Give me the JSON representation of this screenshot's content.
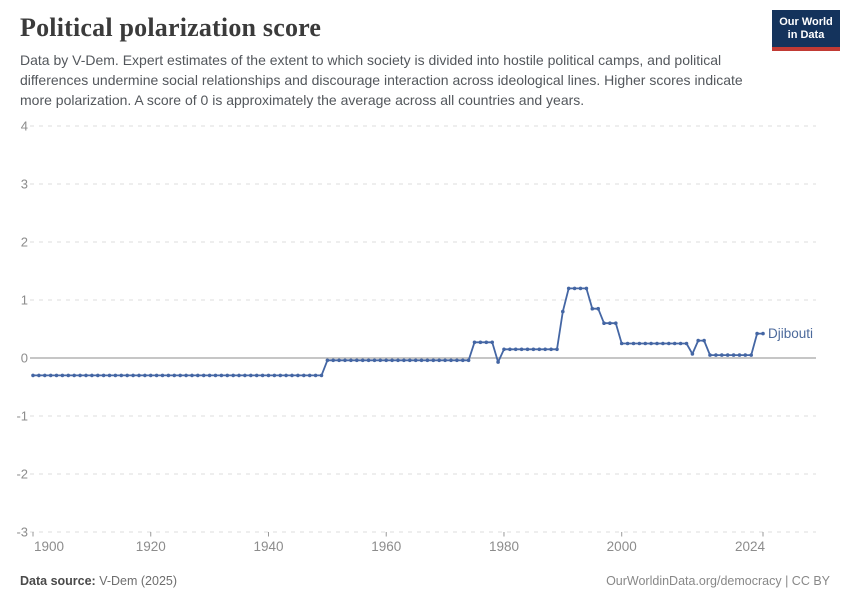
{
  "header": {
    "title": "Political polarization score",
    "subtitle": "Data by V-Dem. Expert estimates of the extent to which society is divided into hostile political camps, and political differences undermine social relationships and discourage interaction across ideological lines. Higher scores indicate more polarization. A score of 0 is approximately the average across all countries and years.",
    "logo": {
      "line1": "Our World",
      "line2": "in Data"
    }
  },
  "colors": {
    "series": "#4c6a9c",
    "series_line": "#4466a4",
    "grid": "#dcdcdc",
    "zero_line": "#a5a5a5",
    "axis_text": "#8c8c8c",
    "logo_bg": "#14335c",
    "logo_red": "#c13a34"
  },
  "chart_data": {
    "type": "line",
    "title": "Political polarization score",
    "xlabel": "",
    "ylabel": "",
    "xlim": [
      1900,
      2024
    ],
    "ylim": [
      -3,
      4
    ],
    "x_ticks": [
      1900,
      1920,
      1940,
      1960,
      1980,
      2000,
      2024
    ],
    "y_ticks": [
      4,
      3,
      2,
      1,
      0,
      -1,
      -2,
      -3
    ],
    "grid": "horizontal-dashed, solid line at 0",
    "legend": "entity label at end of line",
    "series": [
      {
        "name": "Djibouti",
        "color": "#4c6a9c",
        "yearly_points_note": "one data point per year, 1900-2024; encoded as constant-value runs",
        "segments": [
          {
            "from": 1900,
            "to": 1949,
            "value": -0.3
          },
          {
            "from": 1950,
            "to": 1974,
            "value": -0.04
          },
          {
            "from": 1975,
            "to": 1978,
            "value": 0.27
          },
          {
            "from": 1979,
            "to": 1979,
            "value": -0.07
          },
          {
            "from": 1980,
            "to": 1989,
            "value": 0.15
          },
          {
            "from": 1990,
            "to": 1990,
            "value": 0.8
          },
          {
            "from": 1991,
            "to": 1994,
            "value": 1.2
          },
          {
            "from": 1995,
            "to": 1996,
            "value": 0.85
          },
          {
            "from": 1997,
            "to": 1999,
            "value": 0.6
          },
          {
            "from": 2000,
            "to": 2011,
            "value": 0.25
          },
          {
            "from": 2012,
            "to": 2012,
            "value": 0.07
          },
          {
            "from": 2013,
            "to": 2014,
            "value": 0.3
          },
          {
            "from": 2015,
            "to": 2022,
            "value": 0.05
          },
          {
            "from": 2023,
            "to": 2024,
            "value": 0.42
          }
        ]
      }
    ]
  },
  "footer": {
    "source_label": "Data source:",
    "source_value": " V-Dem (2025)",
    "url": "OurWorldinData.org/democracy",
    "separator": " | ",
    "license": "CC BY"
  }
}
